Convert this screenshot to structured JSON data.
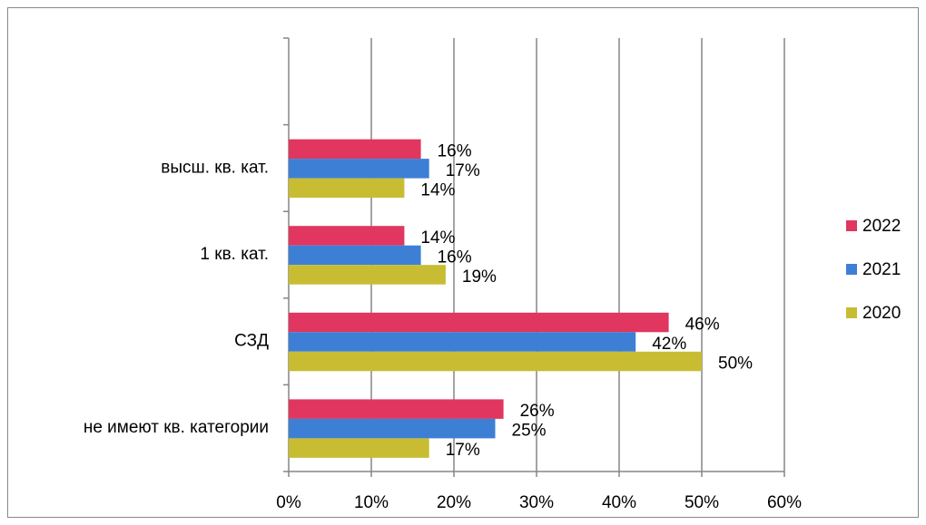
{
  "chart_data": {
    "type": "hbar",
    "categories": [
      null,
      "высш. кв. кат.",
      "1 кв. кат.",
      "СЗД",
      "не имеют кв. категории"
    ],
    "series": [
      {
        "name": "2022",
        "color": "#e0365f",
        "values": [
          null,
          16,
          14,
          46,
          26
        ],
        "value_labels": [
          null,
          "16%",
          "14%",
          "46%",
          "26%"
        ]
      },
      {
        "name": "2021",
        "color": "#3e7fd6",
        "values": [
          null,
          17,
          16,
          42,
          25
        ],
        "value_labels": [
          null,
          "17%",
          "16%",
          "42%",
          "25%"
        ]
      },
      {
        "name": "2020",
        "color": "#c8bd32",
        "values": [
          null,
          14,
          19,
          50,
          17
        ],
        "value_labels": [
          null,
          "14%",
          "19%",
          "50%",
          "17%"
        ]
      }
    ],
    "xlim": [
      0,
      60
    ],
    "xticks": [
      {
        "value": 0,
        "label": "0%"
      },
      {
        "value": 10,
        "label": "10%"
      },
      {
        "value": 20,
        "label": "20%"
      },
      {
        "value": 30,
        "label": "30%"
      },
      {
        "value": 40,
        "label": "40%"
      },
      {
        "value": 50,
        "label": "50%"
      },
      {
        "value": 60,
        "label": "60%"
      }
    ],
    "grid": true,
    "legend": "right"
  }
}
